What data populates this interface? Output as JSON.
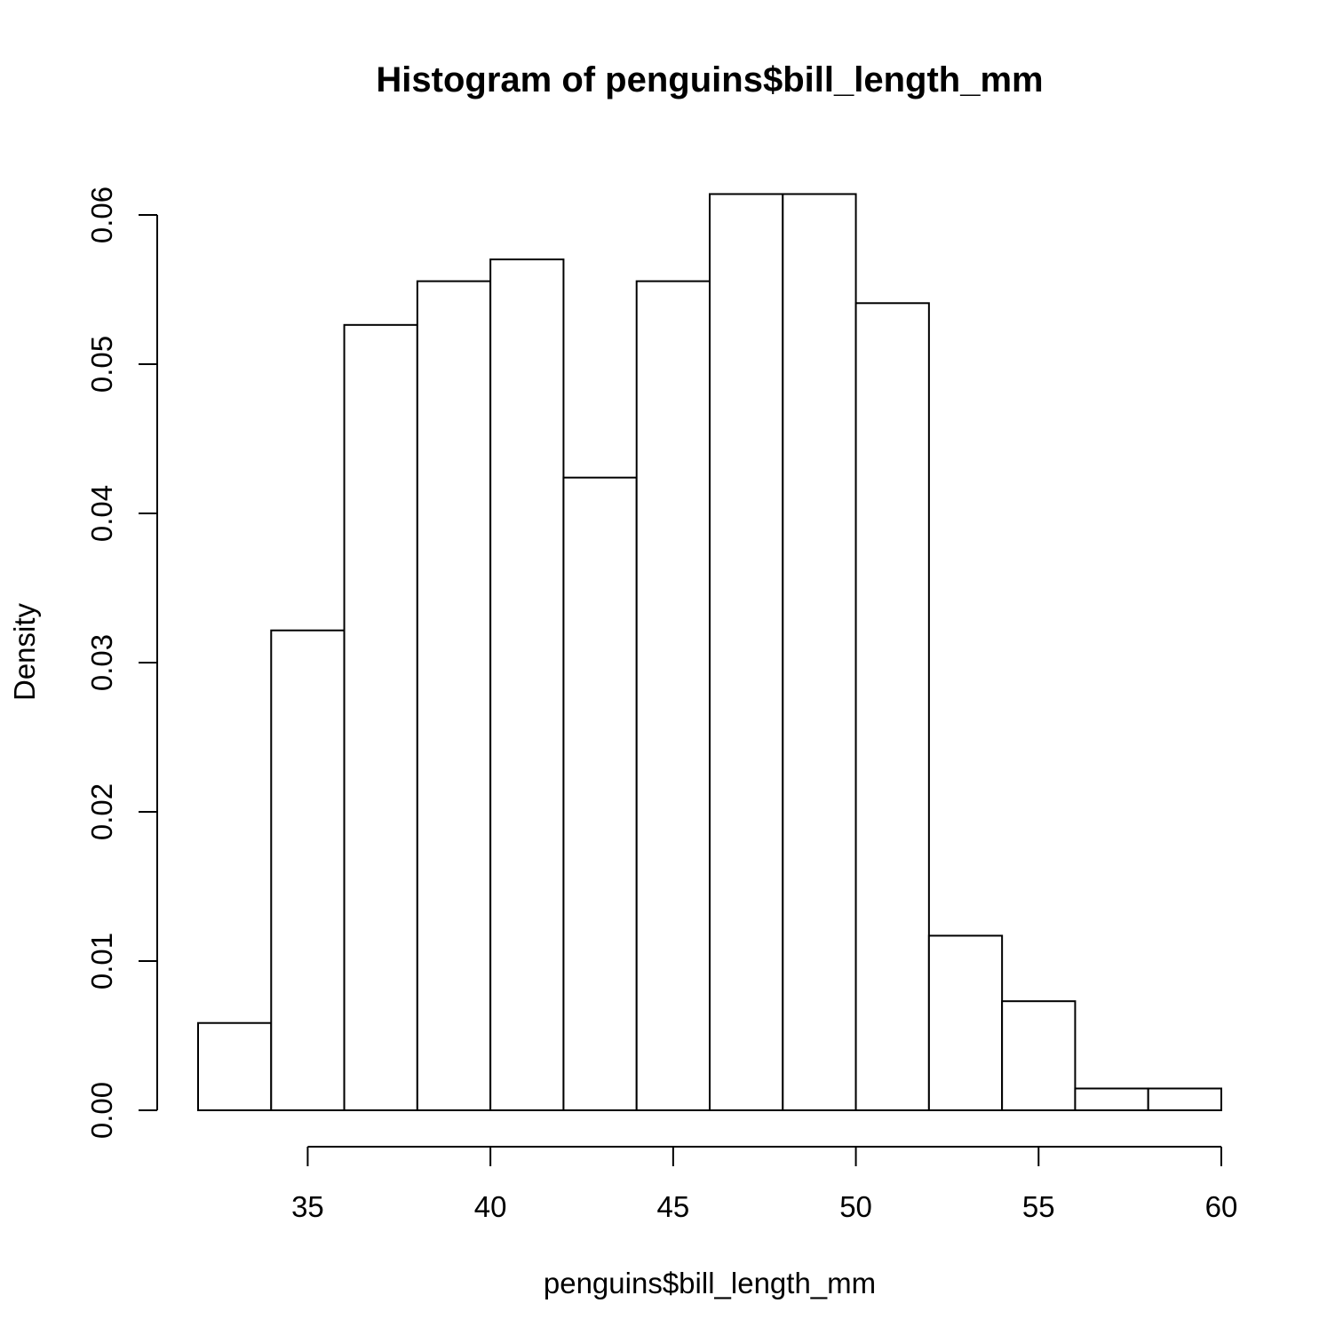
{
  "chart_data": {
    "type": "bar",
    "title": "Histogram of penguins$bill_length_mm",
    "xlabel": "penguins$bill_length_mm",
    "ylabel": "Density",
    "bins": [
      {
        "start": 32,
        "end": 34,
        "density": 0.00585
      },
      {
        "start": 34,
        "end": 36,
        "density": 0.03216
      },
      {
        "start": 36,
        "end": 38,
        "density": 0.05263
      },
      {
        "start": 38,
        "end": 40,
        "density": 0.05556
      },
      {
        "start": 40,
        "end": 42,
        "density": 0.05702
      },
      {
        "start": 42,
        "end": 44,
        "density": 0.0424
      },
      {
        "start": 44,
        "end": 46,
        "density": 0.05556
      },
      {
        "start": 46,
        "end": 48,
        "density": 0.0614
      },
      {
        "start": 48,
        "end": 50,
        "density": 0.0614
      },
      {
        "start": 50,
        "end": 52,
        "density": 0.05409
      },
      {
        "start": 52,
        "end": 54,
        "density": 0.0117
      },
      {
        "start": 54,
        "end": 56,
        "density": 0.00731
      },
      {
        "start": 56,
        "end": 58,
        "density": 0.00146
      },
      {
        "start": 58,
        "end": 60,
        "density": 0.00146
      }
    ],
    "xlim": [
      32,
      60
    ],
    "ylim": [
      0,
      0.06
    ],
    "x_ticks": [
      35,
      40,
      45,
      50,
      55,
      60
    ],
    "x_tick_labels": [
      "35",
      "40",
      "45",
      "50",
      "55",
      "60"
    ],
    "y_ticks": [
      0,
      0.01,
      0.02,
      0.03,
      0.04,
      0.05,
      0.06
    ],
    "y_tick_labels": [
      "0.00",
      "0.01",
      "0.02",
      "0.03",
      "0.04",
      "0.05",
      "0.06"
    ],
    "grid": false,
    "legend": "none",
    "bar_fill": "#ffffff",
    "bar_stroke": "#000000"
  }
}
